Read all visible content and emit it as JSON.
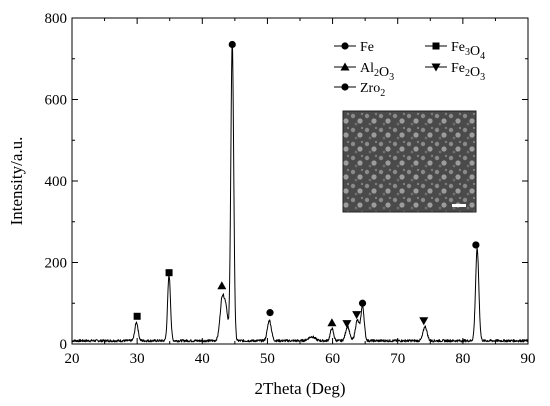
{
  "chart_data": {
    "type": "line",
    "xlabel": "2Theta (Deg)",
    "ylabel": "Intensity/a.u.",
    "xlim": [
      20,
      90
    ],
    "ylim": [
      0,
      800
    ],
    "x_ticks": [
      20,
      30,
      40,
      50,
      60,
      70,
      80,
      90
    ],
    "y_ticks": [
      0,
      200,
      400,
      600,
      800
    ],
    "x_tick_labels": [
      "20",
      "30",
      "40",
      "50",
      "60",
      "70",
      "80",
      "90"
    ],
    "y_tick_labels": [
      "0",
      "200",
      "400",
      "600",
      "800"
    ],
    "grid": false,
    "legend_position": "top-right",
    "legend": [
      {
        "marker": "circle",
        "label": "Fe",
        "sub": ""
      },
      {
        "marker": "square",
        "label": "Fe",
        "sub": "3",
        "label2": "O",
        "sub2": "4"
      },
      {
        "marker": "triangle-up",
        "label": "Al",
        "sub": "2",
        "label2": "O",
        "sub2": "3"
      },
      {
        "marker": "triangle-down",
        "label": "Fe",
        "sub": "2",
        "label2": "O",
        "sub2": "3"
      },
      {
        "marker": "circle",
        "label": "Zro",
        "sub": "2"
      }
    ],
    "baseline_intensity": 8,
    "peaks": [
      {
        "x": 29.9,
        "y": 45,
        "width": 0.25
      },
      {
        "x": 34.9,
        "y": 160,
        "width": 0.22
      },
      {
        "x": 43.1,
        "y": 110,
        "width": 0.35
      },
      {
        "x": 43.7,
        "y": 60,
        "width": 0.25
      },
      {
        "x": 44.6,
        "y": 730,
        "width": 0.22
      },
      {
        "x": 50.3,
        "y": 50,
        "width": 0.3
      },
      {
        "x": 56.8,
        "y": 10,
        "width": 0.5
      },
      {
        "x": 59.9,
        "y": 30,
        "width": 0.25
      },
      {
        "x": 62.3,
        "y": 35,
        "width": 0.3
      },
      {
        "x": 63.8,
        "y": 50,
        "width": 0.3
      },
      {
        "x": 64.6,
        "y": 85,
        "width": 0.25
      },
      {
        "x": 74.2,
        "y": 35,
        "width": 0.3
      },
      {
        "x": 82.2,
        "y": 225,
        "width": 0.25
      }
    ],
    "peak_markers": [
      {
        "x": 30.0,
        "y": 68,
        "marker": "square"
      },
      {
        "x": 34.9,
        "y": 175,
        "marker": "square"
      },
      {
        "x": 43.0,
        "y": 143,
        "marker": "triangle-up"
      },
      {
        "x": 44.6,
        "y": 735,
        "marker": "circle"
      },
      {
        "x": 50.4,
        "y": 77,
        "marker": "circle"
      },
      {
        "x": 59.9,
        "y": 52,
        "marker": "triangle-up"
      },
      {
        "x": 62.2,
        "y": 50,
        "marker": "triangle-down"
      },
      {
        "x": 63.7,
        "y": 72,
        "marker": "triangle-down"
      },
      {
        "x": 64.6,
        "y": 100,
        "marker": "circle"
      },
      {
        "x": 74.0,
        "y": 57,
        "marker": "triangle-down"
      },
      {
        "x": 82.0,
        "y": 243,
        "marker": "circle"
      }
    ],
    "inset": {
      "type": "micrograph",
      "position": "upper-right"
    }
  }
}
